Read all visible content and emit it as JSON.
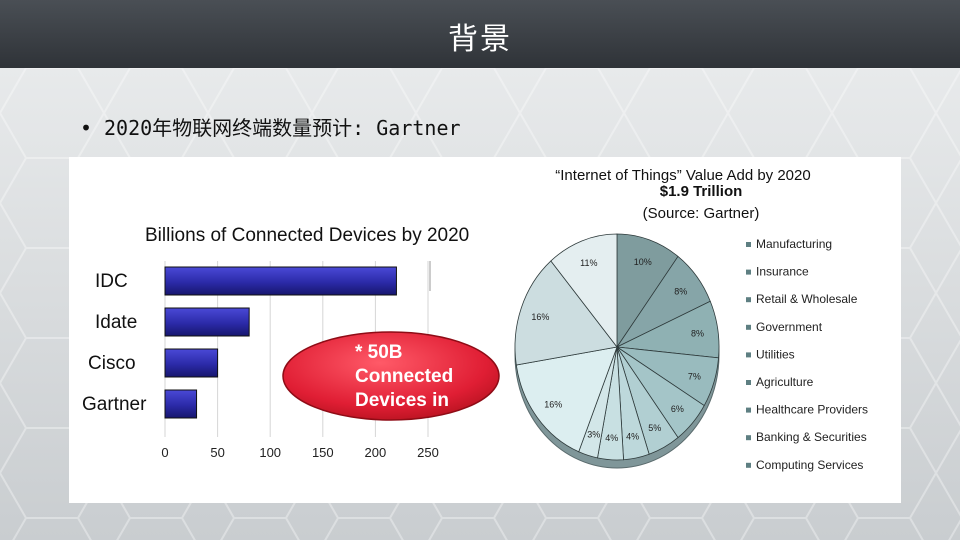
{
  "slide": {
    "title": "背景",
    "bullet_symbol": "•",
    "bullet_text": "2020年物联网终端数量预计: Gartner"
  },
  "callout": {
    "text_lines": [
      "* 50B",
      "Connected",
      "Devices in"
    ],
    "color": "#e8243a"
  },
  "chart_data": [
    {
      "type": "bar",
      "orientation": "horizontal",
      "title": "Billions of Connected Devices by 2020",
      "categories": [
        "IDC",
        "Idate",
        "Cisco",
        "Gartner"
      ],
      "values": [
        220,
        80,
        50,
        30
      ],
      "x_ticks": [
        0,
        50,
        100,
        150,
        200,
        250
      ],
      "xlim": [
        0,
        250
      ],
      "bar_color": "#2b2aa8",
      "grid": true
    },
    {
      "type": "pie",
      "title": "“Internet of Things” Value Add by 2020",
      "subtitle": "$1.9 Trillion",
      "source": "(Source: Gartner)",
      "legend_position": "right",
      "slices": [
        {
          "label": "Manufacturing",
          "value": 10,
          "display": "10%",
          "color": "#7f9c9e"
        },
        {
          "label": "Insurance",
          "value": 8,
          "display": "8%",
          "color": "#86a5a8"
        },
        {
          "label": "Retail & Wholesale",
          "value": 8,
          "display": "8%",
          "color": "#8fb1b3"
        },
        {
          "label": "Government",
          "value": 7,
          "display": "7%",
          "color": "#99bbbe"
        },
        {
          "label": "Utilities",
          "value": 6,
          "display": "6%",
          "color": "#a4c5c8"
        },
        {
          "label": "Agriculture",
          "value": 5,
          "display": "5%",
          "color": "#b1cfd2"
        },
        {
          "label": "Healthcare Providers",
          "value": 4,
          "display": "4%",
          "color": "#bdd8db"
        },
        {
          "label": "Banking & Securities",
          "value": 4,
          "display": "4%",
          "color": "#c8e0e2"
        },
        {
          "label": "Computing Services",
          "value": 3,
          "display": "3%",
          "color": "#d2e6e8"
        },
        {
          "label": "",
          "value": 16,
          "display": "16%",
          "color": "#dceef0"
        },
        {
          "label": "",
          "value": 16,
          "display": "16%",
          "color": "#ccdde0"
        },
        {
          "label": "",
          "value": 11,
          "display": "11%",
          "color": "#e4eef0"
        }
      ]
    }
  ]
}
